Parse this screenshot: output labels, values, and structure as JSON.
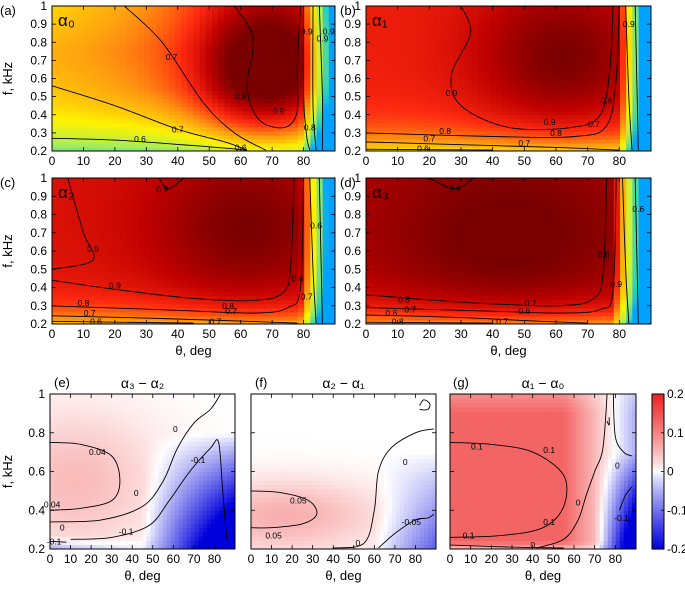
{
  "figure": {
    "description_free": true
  },
  "colors": {
    "sequential": [
      "#00a2ff",
      "#33d2b6",
      "#aaee55",
      "#fff200",
      "#ff9a10",
      "#ff2a10",
      "#c00000",
      "#7a0000"
    ],
    "diverging_neg": "#0000dd",
    "diverging_mid": "#ffffff",
    "diverging_pos": "#ee2020"
  },
  "chart_data": [
    {
      "id": "a",
      "panel_label": "(a)",
      "corner_label": "α₀",
      "type": "heatmap",
      "xlabel": "",
      "ylabel": "f, kHz",
      "xlim": [
        0,
        90
      ],
      "ylim": [
        0.2,
        1.0
      ],
      "xticks": [
        "0",
        "10",
        "20",
        "30",
        "40",
        "50",
        "60",
        "70",
        "80"
      ],
      "yticks": [
        "0.2",
        "0.3",
        "0.4",
        "0.5",
        "0.6",
        "0.7",
        "0.8",
        "0.9",
        "1"
      ],
      "colormap": "sequential",
      "contour_levels": [
        "0.6",
        "0.7",
        "0.8",
        "0.9"
      ],
      "contour_label_positions": [
        [
          28,
          0.265
        ],
        [
          38,
          0.72
        ],
        [
          40,
          0.32
        ],
        [
          60,
          0.5
        ],
        [
          60,
          0.22
        ],
        [
          81,
          0.86
        ],
        [
          72,
          0.42
        ],
        [
          82,
          0.33
        ],
        [
          86,
          0.82
        ],
        [
          88,
          0.86
        ]
      ]
    },
    {
      "id": "b",
      "panel_label": "(b)",
      "corner_label": "α₁",
      "type": "heatmap",
      "xlabel": "",
      "ylabel": "",
      "xlim": [
        0,
        90
      ],
      "ylim": [
        0.2,
        1.0
      ],
      "xticks": [
        "0",
        "10",
        "20",
        "30",
        "40",
        "50",
        "60",
        "70",
        "80"
      ],
      "yticks": [
        "0.2",
        "0.3",
        "0.4",
        "0.5",
        "0.6",
        "0.7",
        "0.8",
        "0.9",
        "1"
      ],
      "colormap": "sequential",
      "contour_levels": [
        "0.6",
        "0.7",
        "0.8",
        "0.9"
      ],
      "contour_label_positions": [
        [
          27,
          0.52
        ],
        [
          25,
          0.31
        ],
        [
          20,
          0.27
        ],
        [
          18,
          0.215
        ],
        [
          60,
          0.3
        ],
        [
          50,
          0.245
        ],
        [
          58,
          0.36
        ],
        [
          76,
          0.48
        ],
        [
          72,
          0.35
        ],
        [
          83,
          0.9
        ]
      ]
    },
    {
      "id": "c",
      "panel_label": "(c)",
      "corner_label": "α₂",
      "type": "heatmap",
      "xlabel": "θ, deg",
      "ylabel": "f, kHz",
      "xlim": [
        0,
        90
      ],
      "ylim": [
        0.2,
        1.0
      ],
      "xticks": [
        "0",
        "10",
        "20",
        "30",
        "40",
        "50",
        "60",
        "70",
        "80"
      ],
      "yticks": [
        "0.2",
        "0.3",
        "0.4",
        "0.5",
        "0.6",
        "0.7",
        "0.8",
        "0.9",
        "1"
      ],
      "colormap": "sequential",
      "contour_levels": [
        "0.6",
        "0.7",
        "0.8",
        "0.9"
      ],
      "contour_label_positions": [
        [
          13,
          0.61
        ],
        [
          35,
          0.94
        ],
        [
          20,
          0.41
        ],
        [
          10,
          0.315
        ],
        [
          12,
          0.26
        ],
        [
          14,
          0.215
        ],
        [
          56,
          0.3
        ],
        [
          57,
          0.27
        ],
        [
          52,
          0.215
        ],
        [
          78,
          0.45
        ],
        [
          81,
          0.35
        ],
        [
          84,
          0.74
        ]
      ]
    },
    {
      "id": "d",
      "panel_label": "(d)",
      "corner_label": "α₃",
      "type": "heatmap",
      "xlabel": "θ, deg",
      "ylabel": "",
      "xlim": [
        0,
        90
      ],
      "ylim": [
        0.2,
        1.0
      ],
      "xticks": [
        "0",
        "10",
        "20",
        "30",
        "40",
        "50",
        "60",
        "70",
        "80"
      ],
      "yticks": [
        "0.2",
        "0.3",
        "0.4",
        "0.5",
        "0.6",
        "0.7",
        "0.8",
        "0.9",
        "1"
      ],
      "colormap": "sequential",
      "contour_levels": [
        "0.6",
        "0.7",
        "0.8",
        "0.9"
      ],
      "contour_label_positions": [
        [
          28,
          0.94
        ],
        [
          12,
          0.335
        ],
        [
          14,
          0.28
        ],
        [
          8,
          0.26
        ],
        [
          10,
          0.215
        ],
        [
          52,
          0.315
        ],
        [
          50,
          0.27
        ],
        [
          43,
          0.215
        ],
        [
          79,
          0.42
        ],
        [
          75,
          0.58
        ],
        [
          86,
          0.83
        ]
      ]
    },
    {
      "id": "e",
      "panel_label": "(e)",
      "title": "α₃ − α₂",
      "type": "heatmap",
      "xlabel": "θ, deg",
      "ylabel": "f, kHz",
      "xlim": [
        0,
        90
      ],
      "ylim": [
        0.2,
        1.0
      ],
      "xticks": [
        "0",
        "10",
        "20",
        "30",
        "40",
        "50",
        "60",
        "70",
        "80"
      ],
      "yticks": [
        "0.2",
        "0.4",
        "0.6",
        "0.8",
        "1"
      ],
      "colormap": "diverging",
      "clim": [
        -0.2,
        0.2
      ],
      "contour_levels": [
        "0.04",
        "0",
        "-0.1"
      ],
      "contour_label_positions": [
        [
          23,
          0.7
        ],
        [
          1,
          0.43
        ],
        [
          6,
          0.31
        ],
        [
          42,
          0.49
        ],
        [
          61,
          0.82
        ],
        [
          72,
          0.66
        ],
        [
          37,
          0.29
        ],
        [
          2,
          0.24
        ]
      ]
    },
    {
      "id": "f",
      "panel_label": "(f)",
      "title": "α₂ − α₁",
      "type": "heatmap",
      "xlabel": "θ, deg",
      "ylabel": "",
      "xlim": [
        0,
        90
      ],
      "ylim": [
        0.2,
        1.0
      ],
      "xticks": [
        "0",
        "10",
        "20",
        "30",
        "40",
        "50",
        "60",
        "70",
        "80"
      ],
      "yticks": [],
      "colormap": "diverging",
      "clim": [
        -0.2,
        0.2
      ],
      "contour_levels": [
        "0.05",
        "0",
        "-0.05"
      ],
      "contour_label_positions": [
        [
          23,
          0.45
        ],
        [
          11,
          0.27
        ],
        [
          52,
          0.23
        ],
        [
          75,
          0.65
        ],
        [
          78,
          0.34
        ]
      ]
    },
    {
      "id": "g",
      "panel_label": "(g)",
      "title": "α₁ − α₀",
      "type": "heatmap",
      "xlabel": "θ, deg",
      "ylabel": "",
      "xlim": [
        0,
        90
      ],
      "ylim": [
        0.2,
        1.0
      ],
      "xticks": [
        "0",
        "10",
        "20",
        "30",
        "40",
        "50",
        "60",
        "70",
        "80"
      ],
      "yticks": [],
      "colormap": "diverging",
      "clim": [
        -0.2,
        0.2
      ],
      "contour_levels": [
        "0.1",
        "0"
      ],
      "contour_label_positions": [
        [
          13,
          0.73
        ],
        [
          48,
          0.71
        ],
        [
          48,
          0.34
        ],
        [
          9,
          0.27
        ],
        [
          40,
          0.22
        ],
        [
          62,
          0.44
        ],
        [
          81,
          0.63
        ],
        [
          83,
          0.36
        ]
      ]
    }
  ],
  "colorbar": {
    "ticks": [
      "0.2",
      "0.1",
      "0",
      "-0.1",
      "-0.2"
    ],
    "values": [
      0.2,
      0.1,
      0,
      -0.1,
      -0.2
    ],
    "range": [
      -0.2,
      0.2
    ]
  }
}
